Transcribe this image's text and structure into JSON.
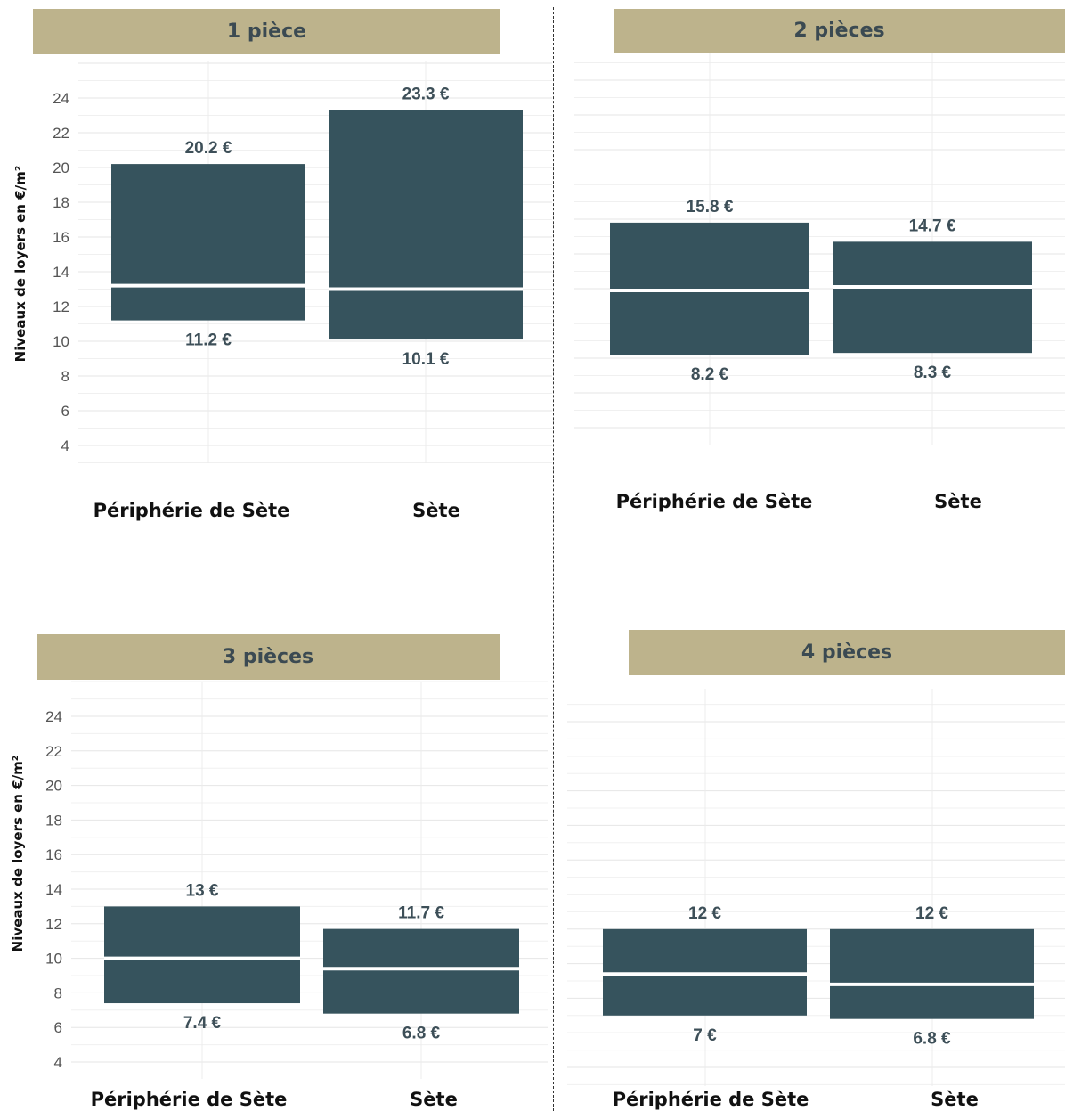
{
  "y_axis_title": "Niveaux de loyers en €/m²",
  "chart_data": [
    {
      "type": "bar",
      "title": "1 pièce",
      "ylabel": "Niveaux de loyers en €/m²",
      "ylim": [
        3,
        26
      ],
      "yticks": [
        4,
        6,
        8,
        10,
        12,
        14,
        16,
        18,
        20,
        22,
        24
      ],
      "show_y_ticks": true,
      "categories": [
        "Périphérie de Sète",
        "Sète"
      ],
      "bars": [
        {
          "category": "Périphérie de Sète",
          "low": 11.2,
          "high": 20.2,
          "median": 13.2,
          "low_label": "11.2 €",
          "high_label": "20.2 €"
        },
        {
          "category": "Sète",
          "low": 10.1,
          "high": 23.3,
          "median": 13.0,
          "low_label": "10.1 €",
          "high_label": "23.3 €"
        }
      ],
      "colors": {
        "bar": "#36535d",
        "median": "#ffffff"
      }
    },
    {
      "type": "bar",
      "title": "2 pièces",
      "ylabel": "",
      "ylim": [
        3,
        26
      ],
      "yticks": [
        4,
        6,
        8,
        10,
        12,
        14,
        16,
        18,
        20,
        22,
        24
      ],
      "show_y_ticks": false,
      "categories": [
        "Périphérie de Sète",
        "Sète"
      ],
      "bars": [
        {
          "category": "Périphérie de Sète",
          "low": 8.2,
          "high": 15.8,
          "median": 11.9,
          "low_label": "8.2 €",
          "high_label": "15.8 €"
        },
        {
          "category": "Sète",
          "low": 8.3,
          "high": 14.7,
          "median": 12.1,
          "low_label": "8.3 €",
          "high_label": "14.7 €"
        }
      ],
      "colors": {
        "bar": "#36535d",
        "median": "#ffffff"
      }
    },
    {
      "type": "bar",
      "title": "3 pièces",
      "ylabel": "Niveaux de loyers en €/m²",
      "ylim": [
        3,
        26
      ],
      "yticks": [
        4,
        6,
        8,
        10,
        12,
        14,
        16,
        18,
        20,
        22,
        24
      ],
      "show_y_ticks": true,
      "categories": [
        "Périphérie de Sète",
        "Sète"
      ],
      "bars": [
        {
          "category": "Périphérie de Sète",
          "low": 7.4,
          "high": 13.0,
          "median": 10.0,
          "low_label": "7.4 €",
          "high_label": "13 €"
        },
        {
          "category": "Sète",
          "low": 6.8,
          "high": 11.7,
          "median": 9.4,
          "low_label": "6.8 €",
          "high_label": "11.7 €"
        }
      ],
      "colors": {
        "bar": "#36535d",
        "median": "#ffffff"
      }
    },
    {
      "type": "bar",
      "title": "4 pièces",
      "ylabel": "",
      "ylim": [
        3,
        26
      ],
      "yticks": [
        4,
        6,
        8,
        10,
        12,
        14,
        16,
        18,
        20,
        22,
        24
      ],
      "show_y_ticks": false,
      "categories": [
        "Périphérie de Sète",
        "Sète"
      ],
      "bars": [
        {
          "category": "Périphérie de Sète",
          "low": 7.0,
          "high": 12.0,
          "median": 9.4,
          "low_label": "7 €",
          "high_label": "12 €"
        },
        {
          "category": "Sète",
          "low": 6.8,
          "high": 12.0,
          "median": 8.8,
          "low_label": "6.8 €",
          "high_label": "12 €"
        }
      ],
      "colors": {
        "bar": "#36535d",
        "median": "#ffffff"
      }
    }
  ]
}
